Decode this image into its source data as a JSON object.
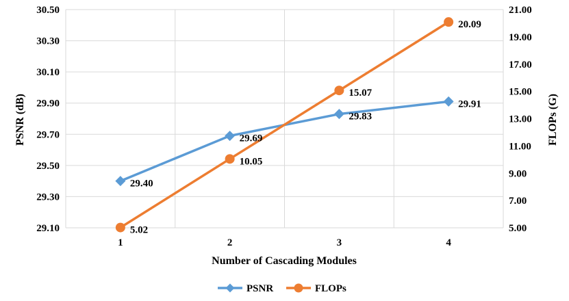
{
  "chart_data": {
    "type": "line",
    "x": [
      1,
      2,
      3,
      4
    ],
    "x_tick_labels": [
      "1",
      "2",
      "3",
      "4"
    ],
    "xlabel": "Number of Cascading Modules",
    "y_left_label": "PSNR (dB)",
    "y_right_label": "FLOPs (G)",
    "y_left_range": [
      29.1,
      30.5
    ],
    "y_left_ticks": [
      "29.10",
      "29.30",
      "29.50",
      "29.70",
      "29.90",
      "30.10",
      "30.30",
      "30.50"
    ],
    "y_right_range": [
      5.0,
      21.0
    ],
    "y_right_ticks": [
      "5.00",
      "7.00",
      "9.00",
      "11.00",
      "13.00",
      "15.00",
      "17.00",
      "19.00",
      "21.00"
    ],
    "grid": true,
    "legend_position": "bottom",
    "series": [
      {
        "name": "PSNR",
        "axis": "left",
        "marker": "diamond",
        "color": "#5b9bd5",
        "values": [
          29.4,
          29.69,
          29.83,
          29.91
        ],
        "labels": [
          "29.40",
          "29.69",
          "29.83",
          "29.91"
        ]
      },
      {
        "name": "FLOPs",
        "axis": "right",
        "marker": "circle",
        "color": "#ed7d31",
        "values": [
          5.02,
          10.05,
          15.07,
          20.09
        ],
        "labels": [
          "5.02",
          "10.05",
          "15.07",
          "20.09"
        ]
      }
    ]
  }
}
